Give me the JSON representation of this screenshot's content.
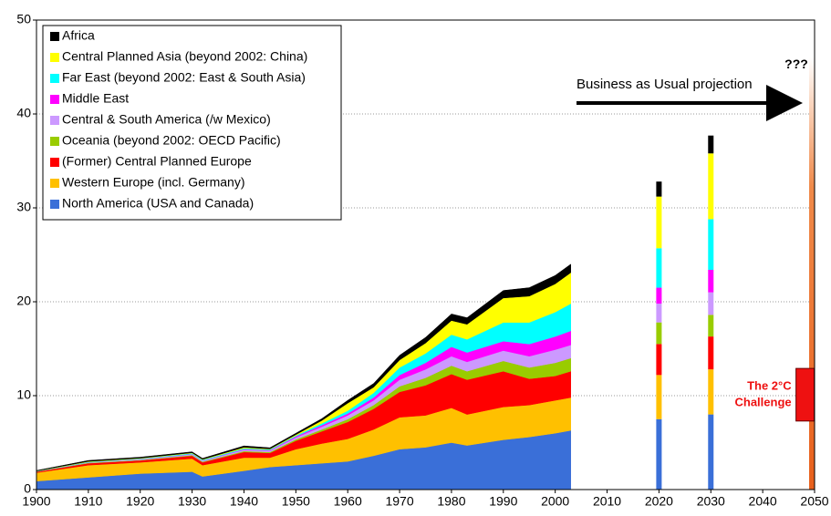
{
  "chart_data": {
    "type": "stacked_area",
    "x": [
      1900,
      1910,
      1920,
      1930,
      1932,
      1940,
      1945,
      1950,
      1955,
      1960,
      1965,
      1970,
      1975,
      1980,
      1983,
      1990,
      1995,
      2000,
      2003
    ],
    "bar_x": [
      2020,
      2030
    ],
    "series": [
      {
        "name": "North America (USA and Canada)",
        "color": "#3a6fd8",
        "values": [
          0.9,
          1.3,
          1.7,
          1.9,
          1.4,
          2.0,
          2.4,
          2.6,
          2.8,
          3.0,
          3.6,
          4.3,
          4.5,
          5.0,
          4.7,
          5.3,
          5.6,
          6.0,
          6.3
        ],
        "bar_values": [
          7.5,
          8.0
        ]
      },
      {
        "name": "Western Europe (incl. Germany)",
        "color": "#ffc000",
        "values": [
          0.9,
          1.3,
          1.2,
          1.4,
          1.2,
          1.4,
          1.0,
          1.7,
          2.1,
          2.4,
          2.8,
          3.4,
          3.4,
          3.7,
          3.3,
          3.5,
          3.4,
          3.5,
          3.5
        ],
        "bar_values": [
          4.7,
          4.8
        ]
      },
      {
        "name": "(Former) Central Planned Europe",
        "color": "#ff0000",
        "values": [
          0.1,
          0.2,
          0.2,
          0.3,
          0.3,
          0.6,
          0.5,
          0.9,
          1.3,
          1.8,
          2.2,
          2.7,
          3.2,
          3.6,
          3.7,
          3.8,
          2.8,
          2.6,
          2.8
        ],
        "bar_values": [
          3.3,
          3.5
        ]
      },
      {
        "name": "Oceania (beyond 2002: OECD Pacific)",
        "color": "#99cc00",
        "values": [
          0.02,
          0.05,
          0.05,
          0.07,
          0.07,
          0.1,
          0.1,
          0.15,
          0.2,
          0.3,
          0.4,
          0.6,
          0.8,
          0.9,
          0.9,
          1.1,
          1.2,
          1.4,
          1.4
        ],
        "bar_values": [
          2.3,
          2.3
        ]
      },
      {
        "name": "Central & South America (/w Mexico)",
        "color": "#cc99ff",
        "values": [
          0.02,
          0.05,
          0.08,
          0.1,
          0.1,
          0.15,
          0.15,
          0.2,
          0.3,
          0.4,
          0.5,
          0.7,
          0.9,
          1.0,
          1.0,
          1.1,
          1.2,
          1.4,
          1.4
        ],
        "bar_values": [
          2.0,
          2.4
        ]
      },
      {
        "name": "Middle East",
        "color": "#ff00ff",
        "values": [
          0,
          0,
          0.02,
          0.02,
          0.02,
          0.05,
          0.05,
          0.1,
          0.15,
          0.2,
          0.3,
          0.5,
          0.7,
          1.0,
          1.0,
          1.0,
          1.3,
          1.4,
          1.5
        ],
        "bar_values": [
          1.7,
          2.4
        ]
      },
      {
        "name": "Far East (beyond 2002: East & South Asia)",
        "color": "#00ffff",
        "values": [
          0.02,
          0.05,
          0.05,
          0.08,
          0.08,
          0.1,
          0.08,
          0.1,
          0.2,
          0.3,
          0.5,
          0.8,
          1.0,
          1.3,
          1.4,
          2.0,
          2.3,
          2.6,
          2.9
        ],
        "bar_values": [
          4.2,
          5.4
        ]
      },
      {
        "name": "Central Planned Asia (beyond 2002: China)",
        "color": "#ffff00",
        "values": [
          0.02,
          0.05,
          0.05,
          0.05,
          0.05,
          0.1,
          0.05,
          0.1,
          0.3,
          0.8,
          0.6,
          0.8,
          1.1,
          1.5,
          1.6,
          2.6,
          2.8,
          3.0,
          3.3
        ],
        "bar_values": [
          5.5,
          7.0
        ]
      },
      {
        "name": "Africa",
        "color": "#000000",
        "values": [
          0.05,
          0.1,
          0.1,
          0.1,
          0.1,
          0.15,
          0.12,
          0.15,
          0.2,
          0.3,
          0.4,
          0.5,
          0.6,
          0.7,
          0.7,
          0.8,
          0.9,
          0.9,
          0.9
        ],
        "bar_values": [
          1.6,
          1.9
        ]
      }
    ],
    "xlim": [
      1900,
      2050
    ],
    "xticks": [
      1900,
      1910,
      1920,
      1930,
      1940,
      1950,
      1960,
      1970,
      1980,
      1990,
      2000,
      2010,
      2020,
      2030,
      2040,
      2050
    ],
    "ylim": [
      0,
      50
    ],
    "yticks": [
      0,
      10,
      20,
      30,
      40,
      50
    ],
    "grid": true,
    "legend": "upper left",
    "projection_label": "Business as Usual projection",
    "gradient_bar": {
      "x": 2050,
      "range": [
        0,
        46
      ],
      "label": "???"
    },
    "challenge": {
      "x": 2048,
      "range": [
        7.3,
        12.9
      ],
      "color": "#ee1111",
      "label": [
        "The 2°C",
        "Challenge"
      ]
    }
  }
}
